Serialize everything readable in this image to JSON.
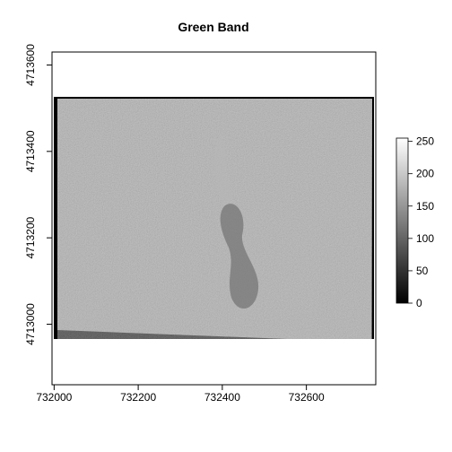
{
  "chart_data": {
    "type": "heatmap",
    "title": "Green Band",
    "xlabel": "",
    "ylabel": "",
    "xlim": [
      731995,
      732765
    ],
    "ylim": [
      4712860,
      4713630
    ],
    "x_ticks": [
      732000,
      732200,
      732400,
      732600
    ],
    "y_ticks": [
      4713000,
      4713200,
      4713400,
      4713600
    ],
    "x_tick_labels": [
      "732000",
      "732200",
      "732400",
      "732600"
    ],
    "y_tick_labels": [
      "4713000",
      "4713200",
      "4713400",
      "4713600"
    ],
    "raster_extent": {
      "xmin": 731995,
      "xmax": 732765,
      "ymin": 4712905,
      "ymax": 4713445
    },
    "value_range": [
      0,
      255
    ],
    "colorbar": {
      "ticks": [
        0,
        50,
        100,
        150,
        200,
        250
      ],
      "tick_labels": [
        "0",
        "50",
        "100",
        "150",
        "200",
        "250"
      ],
      "color_low": "#000000",
      "color_high": "#ffffff",
      "placement": "right"
    },
    "dominant_value_range": [
      110,
      180
    ],
    "dark_channel_value": 125,
    "nodata_border_value": 0,
    "grid": false
  }
}
